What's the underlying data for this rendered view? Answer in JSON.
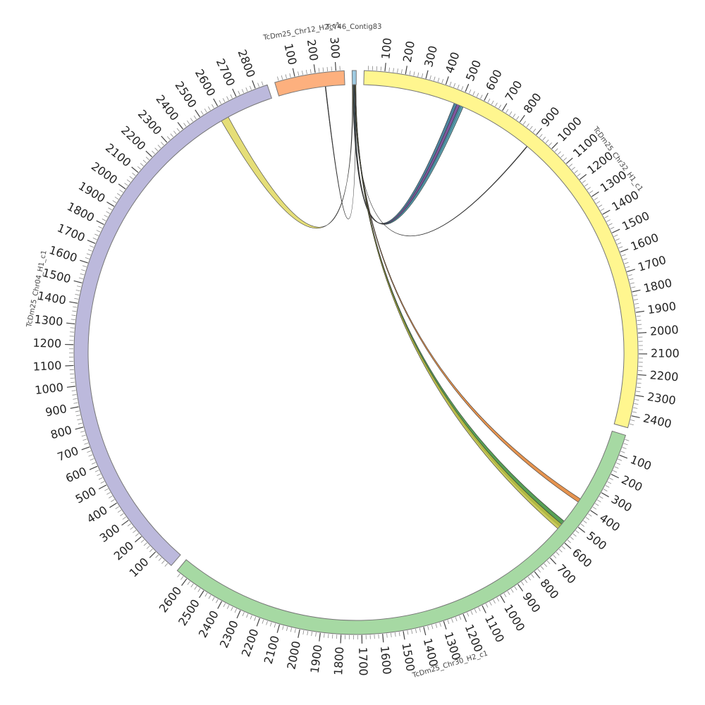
{
  "chart_data": {
    "type": "chord",
    "minor_tick_step": 20,
    "segments": [
      {
        "name": "TcY46_Contig83",
        "length": 20,
        "color": "#9ecae1",
        "ticks": []
      },
      {
        "name": "TcDm25_Chr32_H1_c1",
        "length": 2460,
        "color": "#fff68f",
        "ticks": [
          100,
          200,
          300,
          400,
          500,
          600,
          700,
          800,
          900,
          1000,
          1100,
          1200,
          1300,
          1400,
          1500,
          1600,
          1700,
          1800,
          1900,
          2000,
          2100,
          2200,
          2300,
          2400
        ]
      },
      {
        "name": "TcDm25_Chr30_H2_c1",
        "length": 2660,
        "color": "#a6d9a3",
        "ticks": [
          100,
          200,
          300,
          400,
          500,
          600,
          700,
          800,
          900,
          1000,
          1100,
          1200,
          1300,
          1400,
          1500,
          1600,
          1700,
          1800,
          1900,
          2000,
          2100,
          2200,
          2300,
          2400,
          2500,
          2600
        ]
      },
      {
        "name": "TcDm25_Chr04_H1_c1",
        "length": 2860,
        "color": "#bcb9dc",
        "ticks": [
          100,
          200,
          300,
          400,
          500,
          600,
          700,
          800,
          900,
          1000,
          1100,
          1200,
          1300,
          1400,
          1500,
          1600,
          1700,
          1800,
          1900,
          2000,
          2100,
          2200,
          2300,
          2400,
          2500,
          2600,
          2700,
          2800
        ]
      },
      {
        "name": "TcDm25_Chr12_H2_c1",
        "length": 340,
        "color": "#fdb07e",
        "ticks": [
          100,
          200,
          300
        ]
      }
    ],
    "links": [
      {
        "source": "TcY46_Contig83",
        "source_range": [
          2,
          6
        ],
        "target": "TcDm25_Chr32_H1_c1",
        "target_range": [
          470,
          500
        ],
        "color": "#2f6f8f"
      },
      {
        "source": "TcY46_Contig83",
        "source_range": [
          4,
          8
        ],
        "target": "TcDm25_Chr32_H1_c1",
        "target_range": [
          485,
          510
        ],
        "color": "#8a4f9f"
      },
      {
        "source": "TcY46_Contig83",
        "source_range": [
          6,
          10
        ],
        "target": "TcDm25_Chr32_H1_c1",
        "target_range": [
          500,
          520
        ],
        "color": "#3f8f9f"
      },
      {
        "source": "TcY46_Contig83",
        "source_range": [
          10,
          10.5
        ],
        "target": "TcDm25_Chr32_H1_c1",
        "target_range": [
          900,
          903
        ],
        "color": "#000000"
      },
      {
        "source": "TcY46_Contig83",
        "source_range": [
          12,
          15
        ],
        "target": "TcDm25_Chr30_H2_c1",
        "target_range": [
          380,
          400
        ],
        "color": "#e08030"
      },
      {
        "source": "TcY46_Contig83",
        "source_range": [
          14,
          18
        ],
        "target": "TcDm25_Chr30_H2_c1",
        "target_range": [
          520,
          555
        ],
        "color": "#3a8f3a"
      },
      {
        "source": "TcY46_Contig83",
        "source_range": [
          15,
          18
        ],
        "target": "TcDm25_Chr30_H2_c1",
        "target_range": [
          540,
          570
        ],
        "color": "#c0c040"
      },
      {
        "source": "TcY46_Contig83",
        "source_range": [
          0,
          3
        ],
        "target": "TcDm25_Chr04_H1_c1",
        "target_range": [
          2580,
          2620
        ],
        "color": "#e0d860"
      },
      {
        "source": "TcY46_Contig83",
        "source_range": [
          18,
          18.5
        ],
        "target": "TcDm25_Chr12_H2_c1",
        "target_range": [
          240,
          243
        ],
        "color": "#000000"
      }
    ]
  }
}
